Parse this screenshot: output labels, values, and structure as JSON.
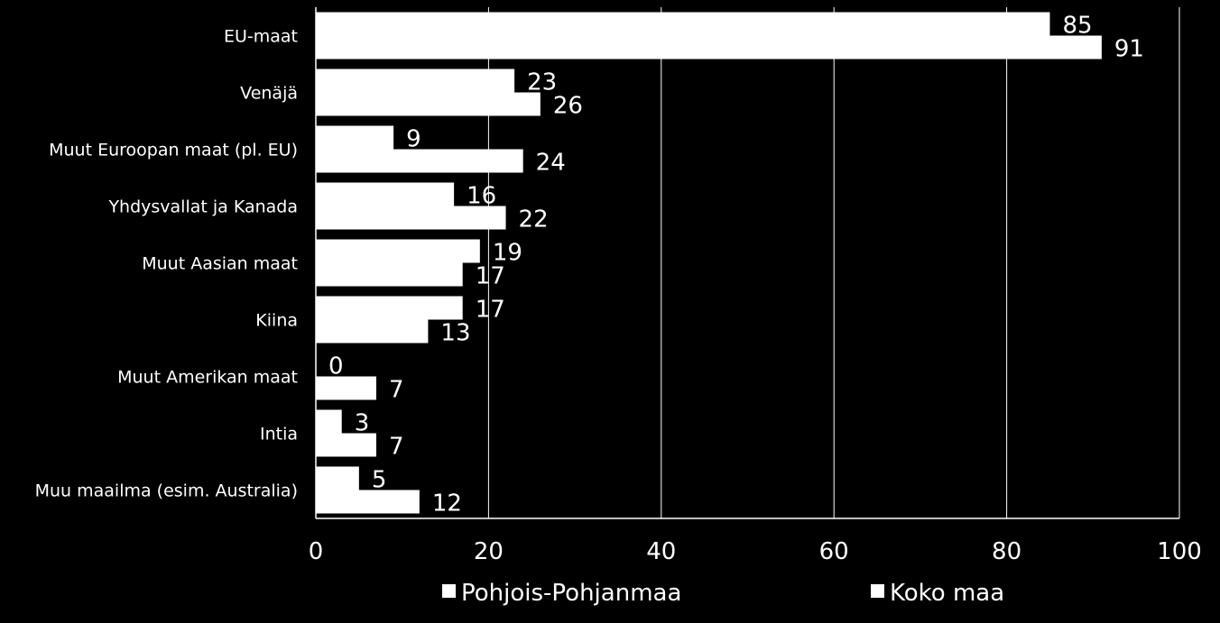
{
  "chart_data": {
    "type": "bar",
    "orientation": "horizontal",
    "categories": [
      "EU-maat",
      "Venäjä",
      "Muut Euroopan maat (pl. EU)",
      "Yhdysvallat ja Kanada",
      "Muut Aasian maat",
      "Kiina",
      "Muut Amerikan maat",
      "Intia",
      "Muu maailma (esim. Australia)"
    ],
    "series": [
      {
        "name": "Pohjois-Pohjanmaa",
        "values": [
          85,
          23,
          9,
          16,
          19,
          17,
          0,
          3,
          5
        ],
        "color": "#ffffff"
      },
      {
        "name": "Koko maa",
        "values": [
          91,
          26,
          24,
          22,
          17,
          13,
          7,
          7,
          12
        ],
        "color": "#ffffff"
      }
    ],
    "xlim": [
      0,
      100
    ],
    "xticks": [
      "0",
      "20",
      "40",
      "60",
      "80",
      "100"
    ],
    "grid": true,
    "legend_position": "bottom",
    "background": "#000000",
    "foreground": "#ffffff"
  }
}
